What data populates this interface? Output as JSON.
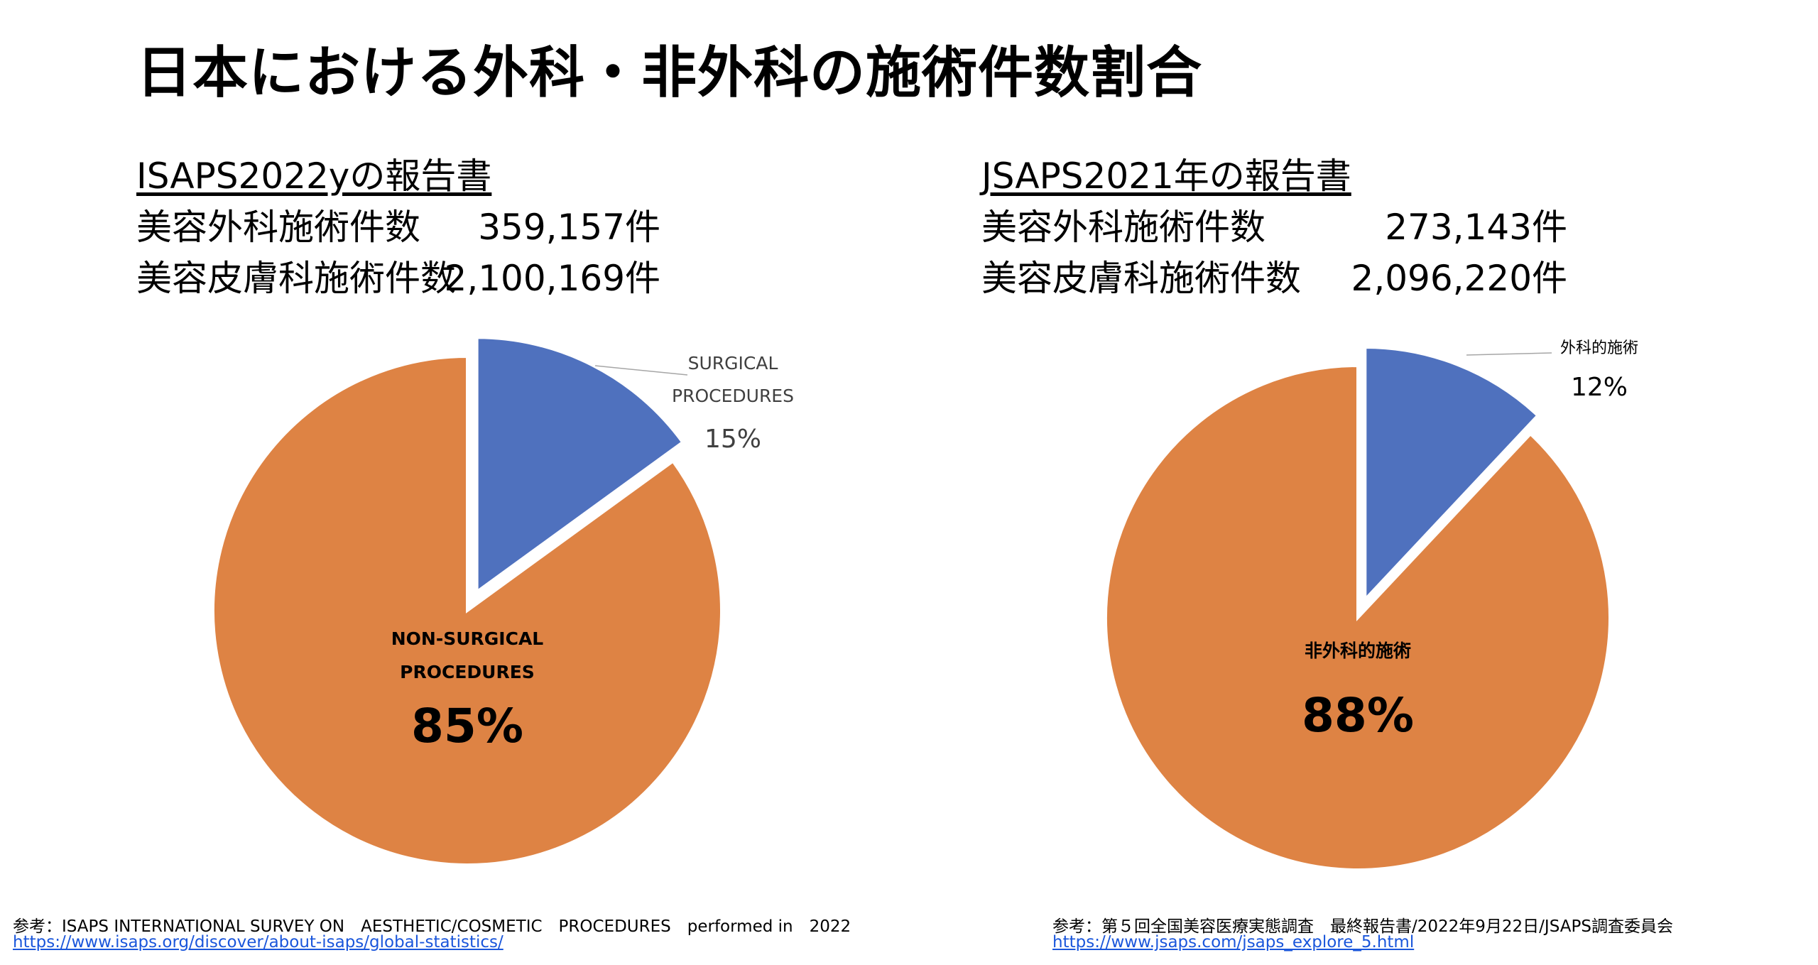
{
  "page": {
    "title": "日本における外科・非外科の施術件数割合"
  },
  "left": {
    "report_title": "ISAPS2022yの報告書",
    "stats": [
      {
        "label": "美容外科施術件数",
        "value": "359,157件"
      },
      {
        "label": "美容皮膚科施術件数",
        "value": "2,100,169件"
      }
    ],
    "footer_note": "参考：ISAPS INTERNATIONAL SURVEY ON　AESTHETIC/COSMETIC　PROCEDURES　performed in　2022",
    "footer_link": "https://www.isaps.org/discover/about-isaps/global-statistics/"
  },
  "right": {
    "report_title": "JSAPS2021年の報告書",
    "stats": [
      {
        "label": "美容外科施術件数",
        "value": "273,143件"
      },
      {
        "label": "美容皮膚科施術件数",
        "value": "2,096,220件"
      }
    ],
    "footer_note": "参考：第５回全国美容医療実態調査　最終報告書/2022年9月22日/JSAPS調査委員会",
    "footer_link": "https://www.jsaps.com/jsaps_explore_5.html"
  },
  "colors": {
    "surgical": "#4f71be",
    "non_surgical": "#de8344",
    "leader_line": "#a6a6a6"
  },
  "chart_data": [
    {
      "type": "pie",
      "slices": [
        {
          "label_lines": [
            "SURGICAL",
            "PROCEDURES"
          ],
          "percent_label": "15%",
          "value": 15,
          "exploded": true
        },
        {
          "label_lines": [
            "NON-SURGICAL",
            "PROCEDURES"
          ],
          "percent_label": "85%",
          "value": 85,
          "exploded": false
        }
      ]
    },
    {
      "type": "pie",
      "slices": [
        {
          "label_lines": [
            "外科的施術"
          ],
          "percent_label": "12%",
          "value": 12,
          "exploded": true
        },
        {
          "label_lines": [
            "非外科的施術"
          ],
          "percent_label": "88%",
          "value": 88,
          "exploded": false
        }
      ]
    }
  ]
}
